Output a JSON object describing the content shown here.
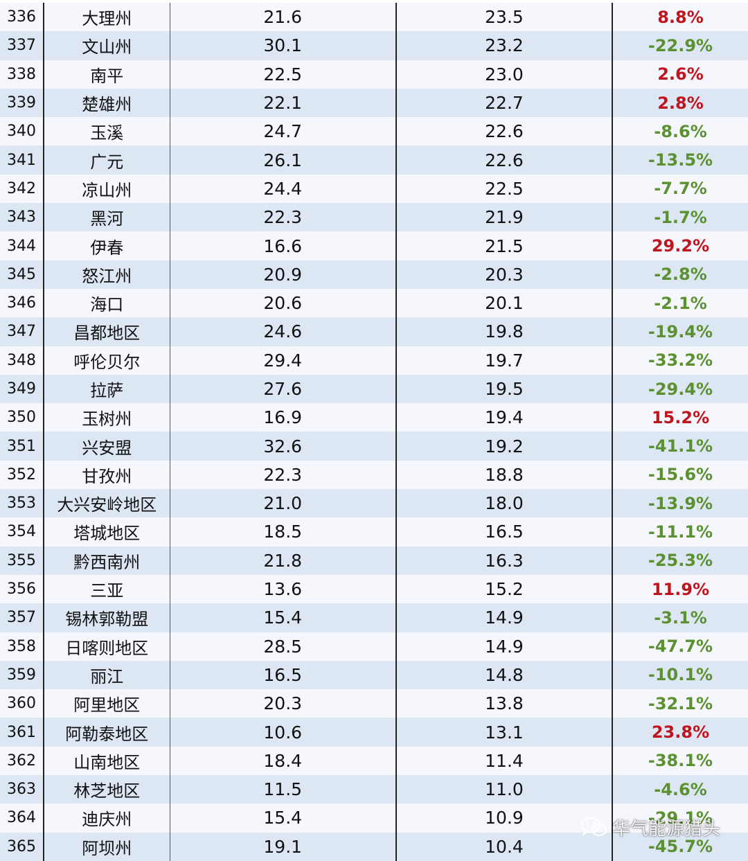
{
  "rows": [
    {
      "rank": "336",
      "city": "大理州",
      "v1": "21.6",
      "v2": "23.5",
      "pct": "8.8%",
      "positive": true
    },
    {
      "rank": "337",
      "city": "文山州",
      "v1": "30.1",
      "v2": "23.2",
      "pct": "-22.9%",
      "positive": false
    },
    {
      "rank": "338",
      "city": "南平",
      "v1": "22.5",
      "v2": "23.0",
      "pct": "2.6%",
      "positive": true
    },
    {
      "rank": "339",
      "city": "楚雄州",
      "v1": "22.1",
      "v2": "22.7",
      "pct": "2.8%",
      "positive": true
    },
    {
      "rank": "340",
      "city": "玉溪",
      "v1": "24.7",
      "v2": "22.6",
      "pct": "-8.6%",
      "positive": false
    },
    {
      "rank": "341",
      "city": "广元",
      "v1": "26.1",
      "v2": "22.6",
      "pct": "-13.5%",
      "positive": false
    },
    {
      "rank": "342",
      "city": "凉山州",
      "v1": "24.4",
      "v2": "22.5",
      "pct": "-7.7%",
      "positive": false
    },
    {
      "rank": "343",
      "city": "黑河",
      "v1": "22.3",
      "v2": "21.9",
      "pct": "-1.7%",
      "positive": false
    },
    {
      "rank": "344",
      "city": "伊春",
      "v1": "16.6",
      "v2": "21.5",
      "pct": "29.2%",
      "positive": true
    },
    {
      "rank": "345",
      "city": "怒江州",
      "v1": "20.9",
      "v2": "20.3",
      "pct": "-2.8%",
      "positive": false
    },
    {
      "rank": "346",
      "city": "海口",
      "v1": "20.6",
      "v2": "20.1",
      "pct": "-2.1%",
      "positive": false
    },
    {
      "rank": "347",
      "city": "昌都地区",
      "v1": "24.6",
      "v2": "19.8",
      "pct": "-19.4%",
      "positive": false
    },
    {
      "rank": "348",
      "city": "呼伦贝尔",
      "v1": "29.4",
      "v2": "19.7",
      "pct": "-33.2%",
      "positive": false
    },
    {
      "rank": "349",
      "city": "拉萨",
      "v1": "27.6",
      "v2": "19.5",
      "pct": "-29.4%",
      "positive": false
    },
    {
      "rank": "350",
      "city": "玉树州",
      "v1": "16.9",
      "v2": "19.4",
      "pct": "15.2%",
      "positive": true
    },
    {
      "rank": "351",
      "city": "兴安盟",
      "v1": "32.6",
      "v2": "19.2",
      "pct": "-41.1%",
      "positive": false
    },
    {
      "rank": "352",
      "city": "甘孜州",
      "v1": "22.3",
      "v2": "18.8",
      "pct": "-15.6%",
      "positive": false
    },
    {
      "rank": "353",
      "city": "大兴安岭地区",
      "v1": "21.0",
      "v2": "18.0",
      "pct": "-13.9%",
      "positive": false
    },
    {
      "rank": "354",
      "city": "塔城地区",
      "v1": "18.5",
      "v2": "16.5",
      "pct": "-11.1%",
      "positive": false
    },
    {
      "rank": "355",
      "city": "黔西南州",
      "v1": "21.8",
      "v2": "16.3",
      "pct": "-25.3%",
      "positive": false
    },
    {
      "rank": "356",
      "city": "三亚",
      "v1": "13.6",
      "v2": "15.2",
      "pct": "11.9%",
      "positive": true
    },
    {
      "rank": "357",
      "city": "锡林郭勒盟",
      "v1": "15.4",
      "v2": "14.9",
      "pct": "-3.1%",
      "positive": false
    },
    {
      "rank": "358",
      "city": "日喀则地区",
      "v1": "28.5",
      "v2": "14.9",
      "pct": "-47.7%",
      "positive": false
    },
    {
      "rank": "359",
      "city": "丽江",
      "v1": "16.5",
      "v2": "14.8",
      "pct": "-10.1%",
      "positive": false
    },
    {
      "rank": "360",
      "city": "阿里地区",
      "v1": "20.3",
      "v2": "13.8",
      "pct": "-32.1%",
      "positive": false
    },
    {
      "rank": "361",
      "city": "阿勒泰地区",
      "v1": "10.6",
      "v2": "13.1",
      "pct": "23.8%",
      "positive": true
    },
    {
      "rank": "362",
      "city": "山南地区",
      "v1": "18.4",
      "v2": "11.4",
      "pct": "-38.1%",
      "positive": false
    },
    {
      "rank": "363",
      "city": "林芝地区",
      "v1": "11.5",
      "v2": "11.0",
      "pct": "-4.6%",
      "positive": false
    },
    {
      "rank": "364",
      "city": "迪庆州",
      "v1": "15.4",
      "v2": "10.9",
      "pct": "-29.1%",
      "positive": false
    },
    {
      "rank": "365",
      "city": "阿坝州",
      "v1": "19.1",
      "v2": "10.4",
      "pct": "-45.7%",
      "positive": false
    }
  ],
  "colors": {
    "positive": "#c0141e",
    "negative": "#5b9130",
    "row_light": "#f5f7fc",
    "row_dark": "#dde6f3"
  },
  "watermark": {
    "icon": "wechat-icon",
    "text": "华气能源猎头"
  }
}
